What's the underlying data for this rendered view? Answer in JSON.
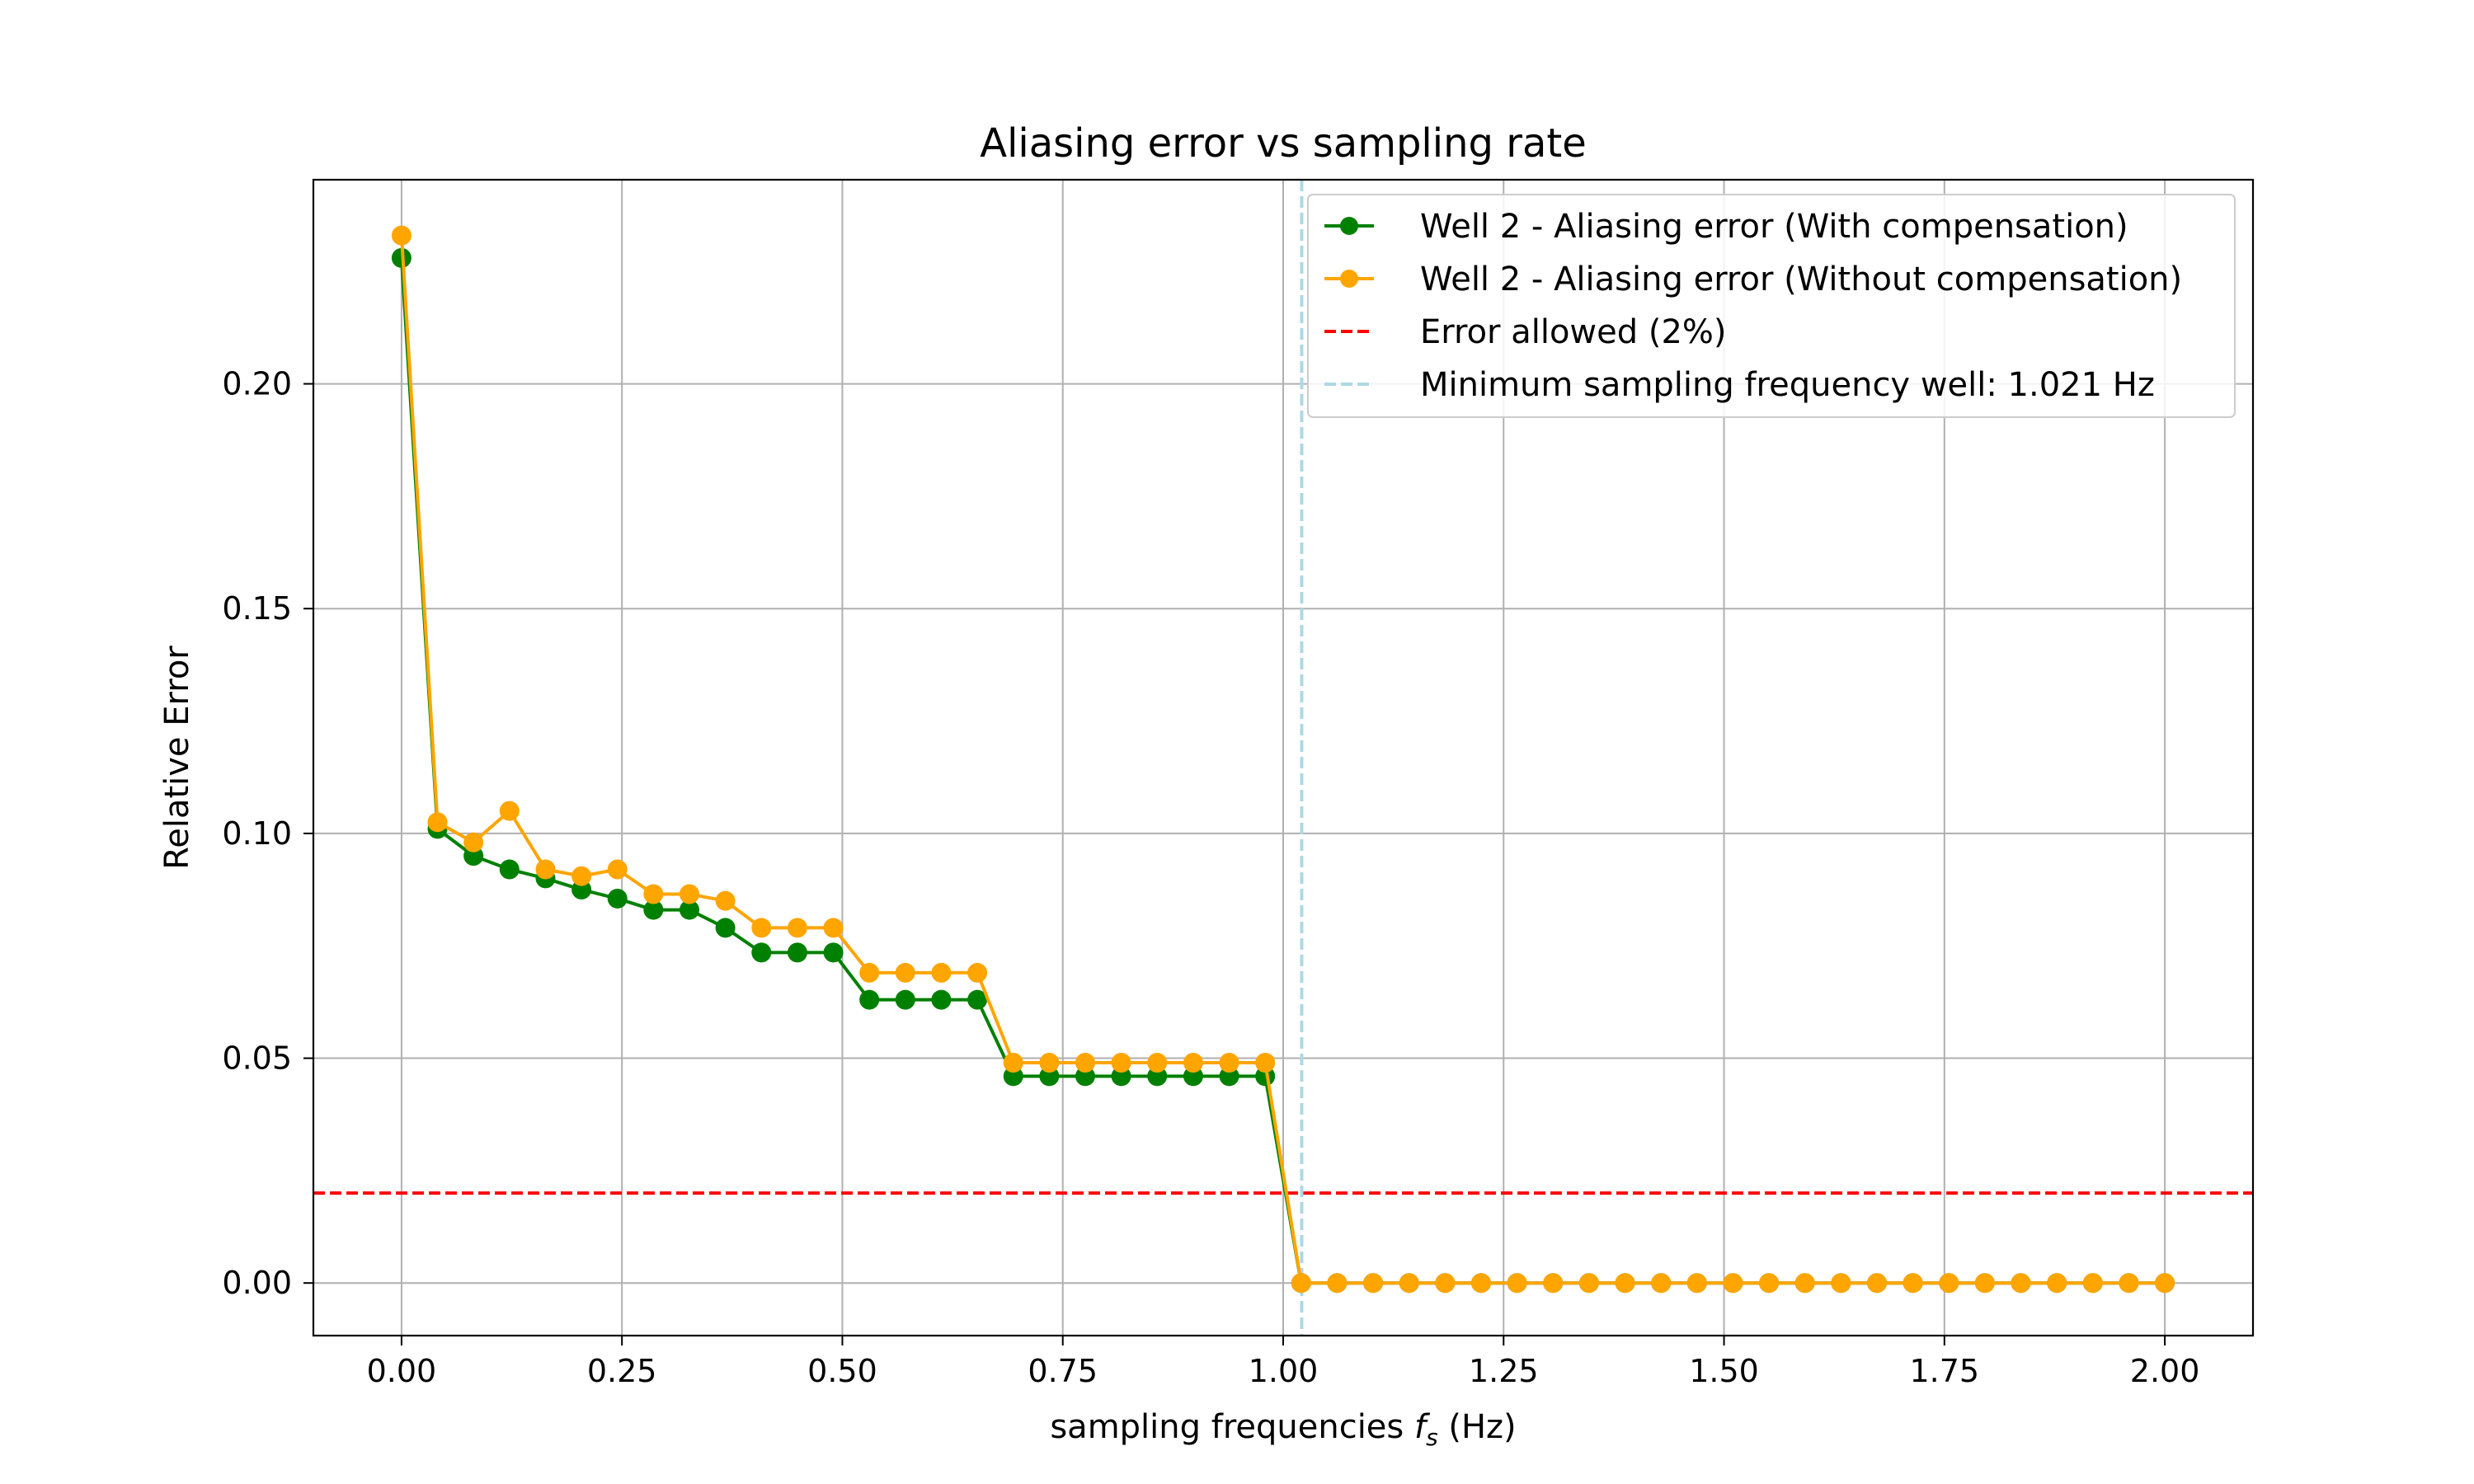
{
  "chart_data": {
    "type": "line",
    "title": "Aliasing error vs sampling rate",
    "xlabel_pre": "sampling frequencies ",
    "xlabel_var": "f",
    "xlabel_sub": "s",
    "xlabel_post": " (Hz)",
    "ylabel": "Relative Error",
    "xlim": [
      -0.1,
      2.1
    ],
    "ylim": [
      -0.0117,
      0.2454
    ],
    "xticks": [
      0.0,
      0.25,
      0.5,
      0.75,
      1.0,
      1.25,
      1.5,
      1.75,
      2.0
    ],
    "xtick_labels": [
      "0.00",
      "0.25",
      "0.50",
      "0.75",
      "1.00",
      "1.25",
      "1.50",
      "1.75",
      "2.00"
    ],
    "yticks": [
      0.0,
      0.05,
      0.1,
      0.15,
      0.2
    ],
    "ytick_labels": [
      "0.00",
      "0.05",
      "0.10",
      "0.15",
      "0.20"
    ],
    "grid": true,
    "legend_position": "top-right",
    "x": [
      0.0,
      0.0408,
      0.0816,
      0.1224,
      0.1633,
      0.2041,
      0.2449,
      0.2857,
      0.3265,
      0.3673,
      0.4082,
      0.449,
      0.4898,
      0.5306,
      0.5714,
      0.6122,
      0.6531,
      0.6939,
      0.7347,
      0.7755,
      0.8163,
      0.8571,
      0.898,
      0.9388,
      0.9796,
      1.0204,
      1.0612,
      1.102,
      1.1429,
      1.1837,
      1.2245,
      1.2653,
      1.3061,
      1.3469,
      1.3878,
      1.4286,
      1.4694,
      1.5102,
      1.551,
      1.5918,
      1.6327,
      1.6735,
      1.7143,
      1.7551,
      1.7959,
      1.8367,
      1.8776,
      1.9184,
      1.9592,
      2.0
    ],
    "series": [
      {
        "name": "Well 2 - Aliasing error (With compensation)",
        "color": "#008000",
        "style": "solid-marker",
        "values": [
          0.228,
          0.101,
          0.095,
          0.092,
          0.09,
          0.0875,
          0.0855,
          0.083,
          0.083,
          0.079,
          0.0735,
          0.0735,
          0.0735,
          0.063,
          0.063,
          0.063,
          0.063,
          0.046,
          0.046,
          0.046,
          0.046,
          0.046,
          0.046,
          0.046,
          0.046,
          0.0,
          0.0,
          0.0,
          0.0,
          0.0,
          0.0,
          0.0,
          0.0,
          0.0,
          0.0,
          0.0,
          0.0,
          0.0,
          0.0,
          0.0,
          0.0,
          0.0,
          0.0,
          0.0,
          0.0,
          0.0,
          0.0,
          0.0,
          0.0,
          0.0
        ]
      },
      {
        "name": "Well 2 - Aliasing error (Without compensation)",
        "color": "#FFA500",
        "style": "solid-marker",
        "values": [
          0.233,
          0.1025,
          0.098,
          0.105,
          0.092,
          0.0905,
          0.092,
          0.0865,
          0.0865,
          0.085,
          0.079,
          0.079,
          0.079,
          0.069,
          0.069,
          0.069,
          0.069,
          0.049,
          0.049,
          0.049,
          0.049,
          0.049,
          0.049,
          0.049,
          0.049,
          0.0,
          0.0,
          0.0,
          0.0,
          0.0,
          0.0,
          0.0,
          0.0,
          0.0,
          0.0,
          0.0,
          0.0,
          0.0,
          0.0,
          0.0,
          0.0,
          0.0,
          0.0,
          0.0,
          0.0,
          0.0,
          0.0,
          0.0,
          0.0,
          0.0
        ]
      }
    ],
    "hline": {
      "name": "Error allowed (2%)",
      "y": 0.02,
      "color": "#FF0000",
      "style": "dashed"
    },
    "vline": {
      "name": "Minimum sampling frequency well: 1.021 Hz",
      "x": 1.021,
      "color": "#ADD8E6",
      "style": "dashed"
    }
  }
}
